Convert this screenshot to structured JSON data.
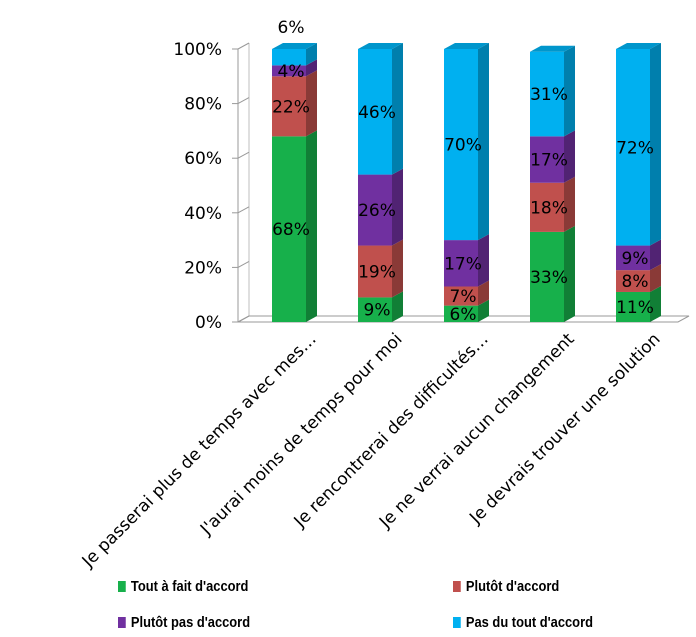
{
  "chart_data": {
    "type": "bar",
    "stacked": true,
    "three_d": true,
    "categories": [
      "Je passerai plus de temps avec mes…",
      "J'aurai moins de temps pour moi",
      "Je rencontrerai des difficultés…",
      "Je ne verrai aucun changement",
      "Je devrais trouver une solution"
    ],
    "series": [
      {
        "name": "Tout à fait d'accord",
        "color": "#17B04B",
        "values": [
          68,
          9,
          6,
          33,
          11
        ]
      },
      {
        "name": "Plutôt d'accord",
        "color": "#C0504D",
        "values": [
          22,
          19,
          7,
          18,
          8
        ]
      },
      {
        "name": "Plutôt pas d'accord",
        "color": "#7030A0",
        "values": [
          4,
          26,
          17,
          17,
          9
        ]
      },
      {
        "name": "Pas du tout d'accord",
        "color": "#00B0F0",
        "values": [
          6,
          46,
          70,
          31,
          72
        ]
      }
    ],
    "yticks": [
      "0%",
      "20%",
      "40%",
      "60%",
      "80%",
      "100%"
    ],
    "ylim": [
      0,
      100
    ],
    "legend_position": "bottom",
    "grid": false
  }
}
